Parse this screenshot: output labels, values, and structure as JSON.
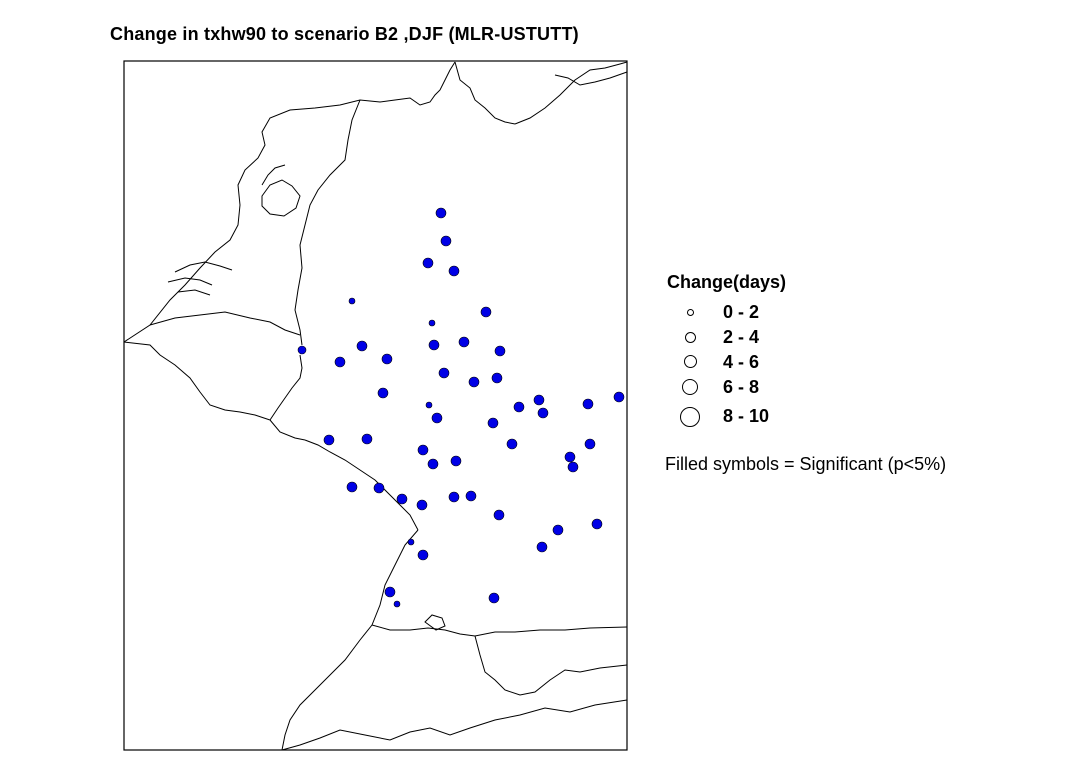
{
  "title": "Change in txhw90 to scenario B2 ,DJF (MLR-USTUTT)",
  "legend": {
    "title": "Change(days)",
    "classes": [
      {
        "label": "0 - 2"
      },
      {
        "label": "2 - 4"
      },
      {
        "label": "4 - 6"
      },
      {
        "label": "6 - 8"
      },
      {
        "label": "8 - 10"
      }
    ],
    "note": "Filled symbols = Significant (p<5%)"
  },
  "colors": {
    "significant_fill": "#0000e6",
    "symbol_outline": "#000000",
    "boundary": "#000000",
    "background": "#ffffff"
  }
}
